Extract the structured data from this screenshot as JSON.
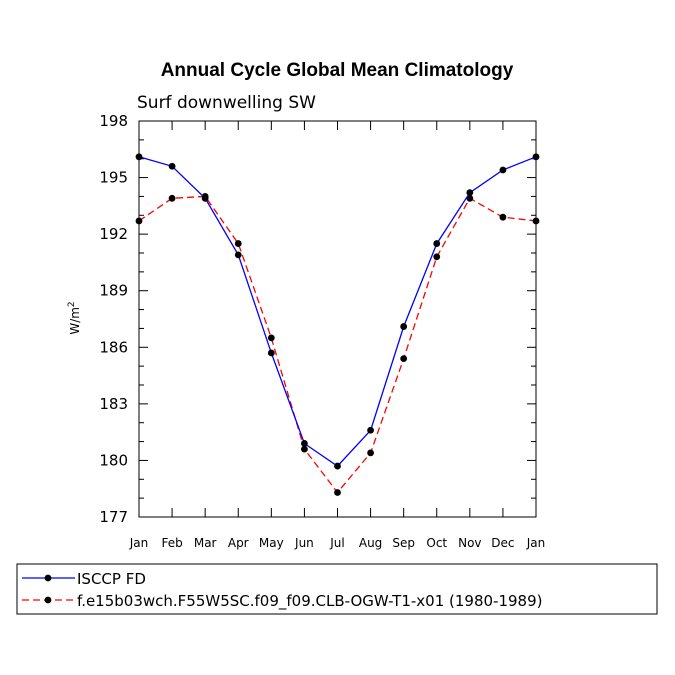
{
  "chart_data": {
    "type": "line",
    "title": "Annual Cycle Global Mean Climatology",
    "subtitle": "Surf downwelling SW",
    "xlabel": "",
    "ylabel": "W/m",
    "ylabel_superscript": "2",
    "categories": [
      "Jan",
      "Feb",
      "Mar",
      "Apr",
      "May",
      "Jun",
      "Jul",
      "Aug",
      "Sep",
      "Oct",
      "Nov",
      "Dec",
      "Jan"
    ],
    "ylim": [
      177,
      198
    ],
    "yticks": [
      177,
      180,
      183,
      186,
      189,
      192,
      195,
      198
    ],
    "grid": false,
    "legend_position": "bottom",
    "series": [
      {
        "name": "ISCCP FD",
        "color": "#0000ff",
        "style": "solid",
        "values": [
          196.1,
          195.6,
          193.9,
          190.9,
          185.7,
          180.9,
          179.7,
          181.6,
          187.1,
          191.5,
          194.2,
          195.4,
          196.1
        ]
      },
      {
        "name": "f.e15b03wch.F55W5SC.f09_f09.CLB-OGW-T1-x01 (1980-1989)",
        "color": "#ff0000",
        "style": "dashed",
        "values": [
          192.7,
          193.9,
          194.0,
          191.5,
          186.5,
          180.6,
          178.3,
          180.4,
          185.4,
          190.8,
          193.9,
          192.9,
          192.7
        ]
      }
    ]
  }
}
